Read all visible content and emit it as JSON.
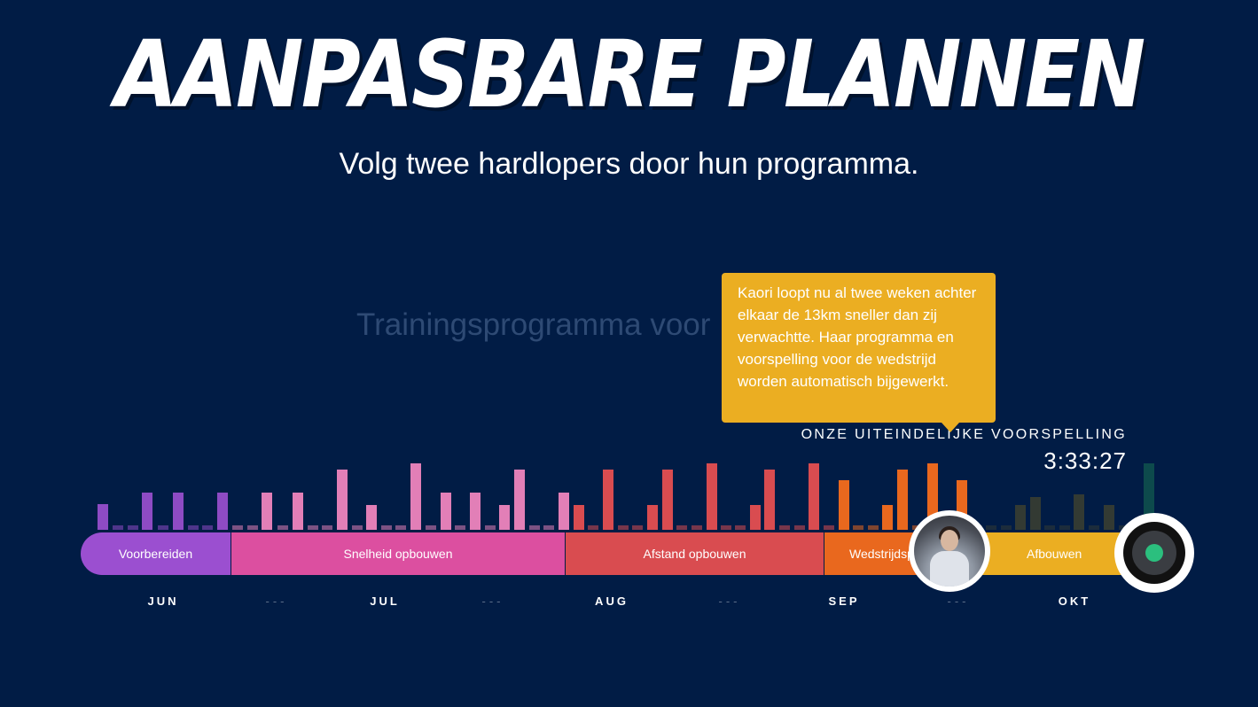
{
  "header": {
    "title": "AANPASBARE PLANNEN",
    "subtitle": "Volg twee hardlopers door hun programma."
  },
  "program": {
    "title_partial": "Trainingsprogramma voor"
  },
  "tooltip": {
    "text": "Kaori loopt nu al twee weken achter elkaar de 13km sneller dan zij verwachtte. Haar programma en voorspelling voor de wedstrijd worden automatisch bijgewerkt."
  },
  "prediction": {
    "label": "ONZE UITEINDELIJKE VOORSPELLING",
    "time": "3:33:27"
  },
  "timeline": {
    "phases": [
      {
        "label": "Voorbereiden",
        "color": "#9b4fd0"
      },
      {
        "label": "Snelheid opbouwen",
        "color": "#dc4fa0"
      },
      {
        "label": "Afstand opbouwen",
        "color": "#d94c50"
      },
      {
        "label": "Wedstrijdspecifiek",
        "color": "#e9681e"
      },
      {
        "label": "Afbouwen",
        "color": "#ebae22"
      }
    ],
    "months": [
      "JUN",
      "---",
      "JUL",
      "---",
      "AUG",
      "---",
      "SEP",
      "---",
      "OKT"
    ]
  },
  "runner": {
    "icon": "runner-avatar"
  },
  "finish": {
    "icon": "finish-target-icon",
    "accent": "#2bbf7e"
  },
  "bar_colors": {
    "purple": "#8e4bc4",
    "pink": "#e27fb7",
    "red": "#d94c50",
    "orange": "#e9681e",
    "dark": "#333a33",
    "teal": "#0d4a4c"
  }
}
